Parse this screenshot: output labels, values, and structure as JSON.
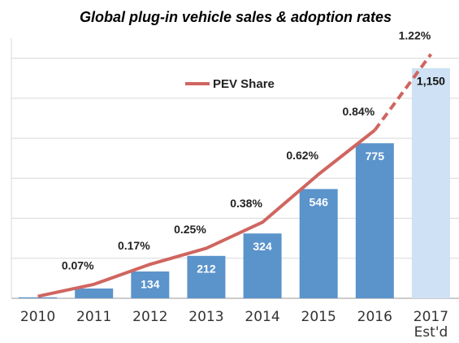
{
  "chart_data": {
    "type": "bar_line",
    "title": "Global plug-in vehicle sales & adoption rates",
    "categories": [
      "2010",
      "2011",
      "2012",
      "2013",
      "2014",
      "2015",
      "2016",
      "2017 Est'd"
    ],
    "series": [
      {
        "type": "bar",
        "colors": [
          "#5b93cb",
          "#5b93cb",
          "#5b93cb",
          "#5b93cb",
          "#5b93cb",
          "#5b93cb",
          "#5b93cb",
          "#cfe1f4"
        ],
        "values": [
          5,
          49,
          134,
          212,
          324,
          546,
          775,
          1150
        ],
        "value_labels": [
          null,
          null,
          "134",
          "212",
          "324",
          "546",
          "775",
          "1,150"
        ]
      },
      {
        "type": "line",
        "name": "PEV Share",
        "color": "#d06560",
        "axis": "y2",
        "values": [
          0.01,
          0.07,
          0.17,
          0.25,
          0.38,
          0.62,
          0.84,
          1.22
        ],
        "value_labels": [
          null,
          "0.07%",
          "0.17%",
          "0.25%",
          "0.38%",
          "0.62%",
          "0.84%",
          "1.22%"
        ]
      }
    ],
    "ylim": [
      0,
      1300
    ],
    "yticks": [
      0,
      200,
      400,
      600,
      800,
      1000,
      1200
    ],
    "y2lim": [
      0,
      1.3
    ],
    "grid": true
  }
}
